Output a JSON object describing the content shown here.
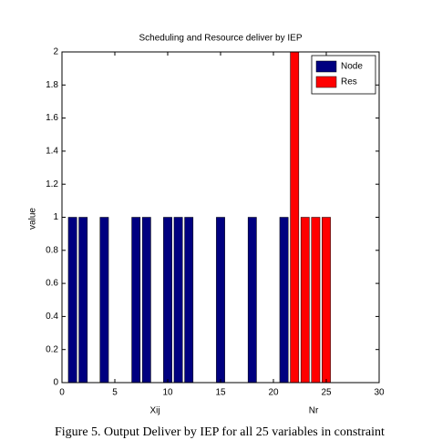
{
  "chart_data": {
    "type": "bar",
    "title": "Scheduling and Resource deliver by IEP",
    "ylabel": "value",
    "annotations": [
      "Xij",
      "Nr"
    ],
    "caption": "Figure 5. Output Deliver by IEP for all 25 variables in  constraint",
    "series": [
      {
        "name": "Node",
        "color": "#000080",
        "x": [
          1,
          2,
          4,
          7,
          8,
          10,
          11,
          12,
          15,
          18,
          21
        ],
        "values": [
          1,
          1,
          1,
          1,
          1,
          1,
          1,
          1,
          1,
          1,
          1
        ]
      },
      {
        "name": "Res",
        "color": "#ff0000",
        "x": [
          22,
          23,
          24,
          25
        ],
        "values": [
          2,
          1,
          1,
          1
        ]
      }
    ],
    "xlim": [
      0,
      30
    ],
    "xticks": [
      0,
      5,
      10,
      15,
      20,
      25,
      30
    ],
    "ylim": [
      0,
      2
    ],
    "yticks": [
      0,
      0.2,
      0.4,
      0.6,
      0.8,
      1,
      1.2,
      1.4,
      1.6,
      1.8,
      2
    ],
    "legend": "upper right",
    "grid": false
  }
}
